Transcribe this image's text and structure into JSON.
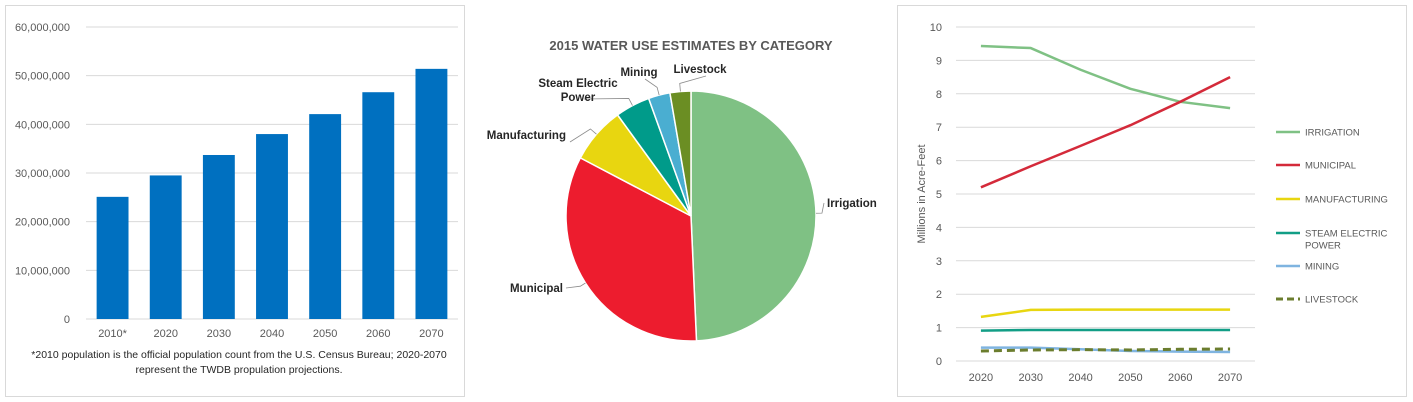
{
  "chart_data": [
    {
      "type": "bar",
      "categories": [
        "2010*",
        "2020",
        "2030",
        "2040",
        "2050",
        "2060",
        "2070"
      ],
      "values": [
        25100000,
        29500000,
        33700000,
        38000000,
        42100000,
        46600000,
        51400000
      ],
      "ylim": [
        0,
        60000000
      ],
      "yticks": [
        "0",
        "10,000,000",
        "20,000,000",
        "30,000,000",
        "40,000,000",
        "50,000,000",
        "60,000,000"
      ],
      "ytick_values": [
        0,
        10000000,
        20000000,
        30000000,
        40000000,
        50000000,
        60000000
      ],
      "color": "#0070c0",
      "grid": true,
      "footnote": "*2010 population is the official population count from the U.S. Census Bureau; 2020-2070 represent the TWDB propulation projections."
    },
    {
      "type": "pie",
      "title": "2015 WATER USE ESTIMATES BY CATEGORY",
      "slices": [
        {
          "label": "Irrigation",
          "value": 49.3,
          "color": "#7fc184"
        },
        {
          "label": "Municipal",
          "value": 33.4,
          "color": "#ed1c2e"
        },
        {
          "label": "Manufacturing",
          "value": 7.3,
          "color": "#e8d610"
        },
        {
          "label": "Steam Electric Power",
          "label_lines": [
            "Steam Electric",
            "Power"
          ],
          "value": 4.5,
          "color": "#009b8a"
        },
        {
          "label": "Mining",
          "value": 2.8,
          "color": "#4aaed1"
        },
        {
          "label": "Livestock",
          "value": 2.7,
          "color": "#6b8e23"
        }
      ]
    },
    {
      "type": "line",
      "x": [
        2020,
        2030,
        2040,
        2050,
        2060,
        2070
      ],
      "ylabel": "Millions in Acre-Feet",
      "ylim": [
        0,
        10
      ],
      "yticks": [
        0,
        1,
        2,
        3,
        4,
        5,
        6,
        7,
        8,
        9,
        10
      ],
      "grid": true,
      "legend_position": "right",
      "series": [
        {
          "name": "IRRIGATION",
          "values": [
            9.43,
            9.37,
            8.72,
            8.15,
            7.76,
            7.57
          ],
          "color": "#7fc184",
          "dash": false
        },
        {
          "name": "MUNICIPAL",
          "values": [
            5.2,
            5.83,
            6.44,
            7.06,
            7.76,
            8.5
          ],
          "color": "#d42a3a",
          "dash": false
        },
        {
          "name": "MANUFACTURING",
          "values": [
            1.32,
            1.53,
            1.54,
            1.54,
            1.54,
            1.54
          ],
          "color": "#e8d610",
          "dash": false
        },
        {
          "name": "STEAM ELECTRIC POWER",
          "label_lines": [
            "STEAM ELECTRIC",
            "POWER"
          ],
          "values": [
            0.91,
            0.93,
            0.93,
            0.93,
            0.93,
            0.93
          ],
          "color": "#129e86",
          "dash": false
        },
        {
          "name": "MINING",
          "values": [
            0.4,
            0.4,
            0.35,
            0.3,
            0.28,
            0.27
          ],
          "color": "#7fb4e0",
          "dash": false
        },
        {
          "name": "LIVESTOCK",
          "values": [
            0.3,
            0.33,
            0.34,
            0.33,
            0.35,
            0.36
          ],
          "color": "#6b7d2e",
          "dash": true
        }
      ]
    }
  ]
}
